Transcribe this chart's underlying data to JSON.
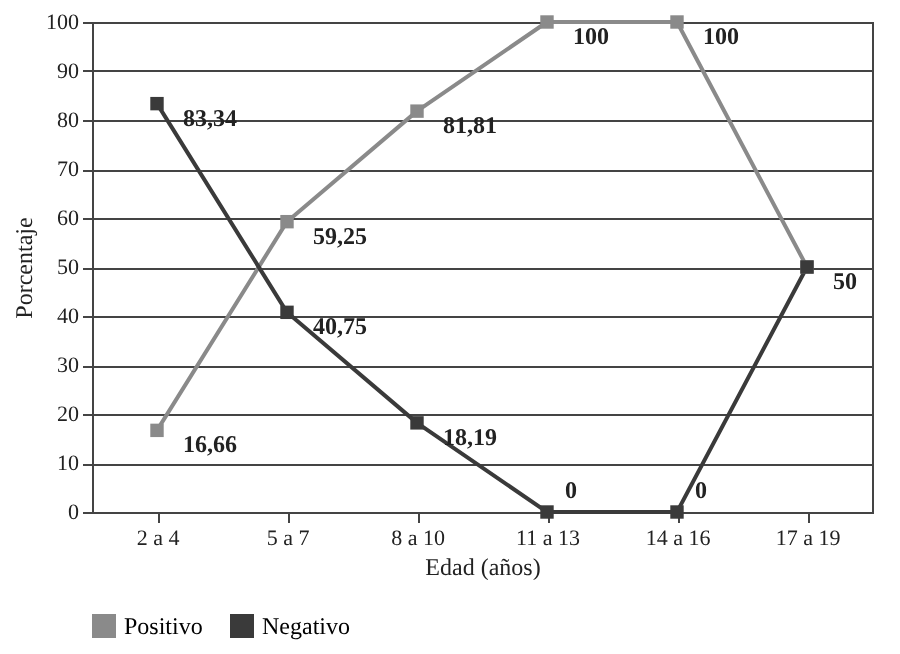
{
  "chart_data": {
    "type": "line",
    "xlabel": "Edad (años)",
    "ylabel": "Porcentaje",
    "categories": [
      "2 a 4",
      "5 a 7",
      "8 a 10",
      "11 a 13",
      "14 a 16",
      "17 a 19"
    ],
    "series": [
      {
        "name": "Positivo",
        "color": "#8a8a8a",
        "values": [
          16.66,
          59.25,
          81.81,
          100,
          100,
          50
        ],
        "value_labels": [
          "16,66",
          "59,25",
          "81,81",
          "100",
          "100",
          null
        ]
      },
      {
        "name": "Negativo",
        "color": "#3a3a3a",
        "values": [
          83.34,
          40.75,
          18.19,
          0,
          0,
          50
        ],
        "value_labels": [
          "83,34",
          "40,75",
          "18,19",
          "0",
          "0",
          "50"
        ]
      }
    ],
    "ylim": [
      0,
      100
    ],
    "yticks": [
      0,
      10,
      20,
      30,
      40,
      50,
      60,
      70,
      80,
      90,
      100
    ],
    "grid": "y",
    "legend": "bottom left",
    "marker": "square",
    "line_style": "solid"
  }
}
